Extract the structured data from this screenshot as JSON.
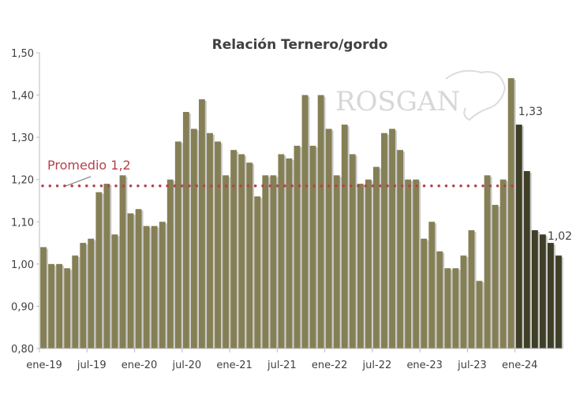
{
  "chart_data": {
    "type": "bar",
    "title": "Relación Ternero/gordo",
    "xlabel": "",
    "ylabel": "",
    "ylim": [
      0.8,
      1.5
    ],
    "yticks": [
      "0,80",
      "0,90",
      "1,00",
      "1,10",
      "1,20",
      "1,30",
      "1,40",
      "1,50"
    ],
    "xtick_labels": [
      "ene-19",
      "jul-19",
      "ene-20",
      "jul-20",
      "ene-21",
      "jul-21",
      "ene-22",
      "jul-22",
      "ene-23",
      "jul-23",
      "ene-24"
    ],
    "grid": false,
    "values": [
      1.04,
      1.0,
      1.0,
      0.99,
      1.02,
      1.05,
      1.06,
      1.17,
      1.19,
      1.07,
      1.21,
      1.12,
      1.13,
      1.09,
      1.09,
      1.1,
      1.2,
      1.29,
      1.36,
      1.32,
      1.39,
      1.31,
      1.29,
      1.21,
      1.27,
      1.26,
      1.24,
      1.16,
      1.21,
      1.21,
      1.26,
      1.25,
      1.28,
      1.4,
      1.28,
      1.4,
      1.32,
      1.21,
      1.33,
      1.26,
      1.19,
      1.2,
      1.23,
      1.31,
      1.32,
      1.27,
      1.2,
      1.2,
      1.06,
      1.1,
      1.03,
      0.99,
      0.99,
      1.02,
      1.08,
      0.96,
      1.21,
      1.14,
      1.2,
      1.44,
      1.33,
      1.22,
      1.08,
      1.07,
      1.05,
      1.02
    ],
    "highlight_from_index": 60,
    "colors": {
      "bar": "#857f55",
      "highlight": "#3f3f28",
      "average_line": "#b5414a"
    },
    "average": {
      "value": 1.185,
      "label": "Promedio 1,2"
    },
    "data_labels": [
      {
        "index": 60,
        "text": "1,33"
      },
      {
        "index": 65,
        "text": "1,02"
      }
    ],
    "watermark": "ROSGAN"
  }
}
